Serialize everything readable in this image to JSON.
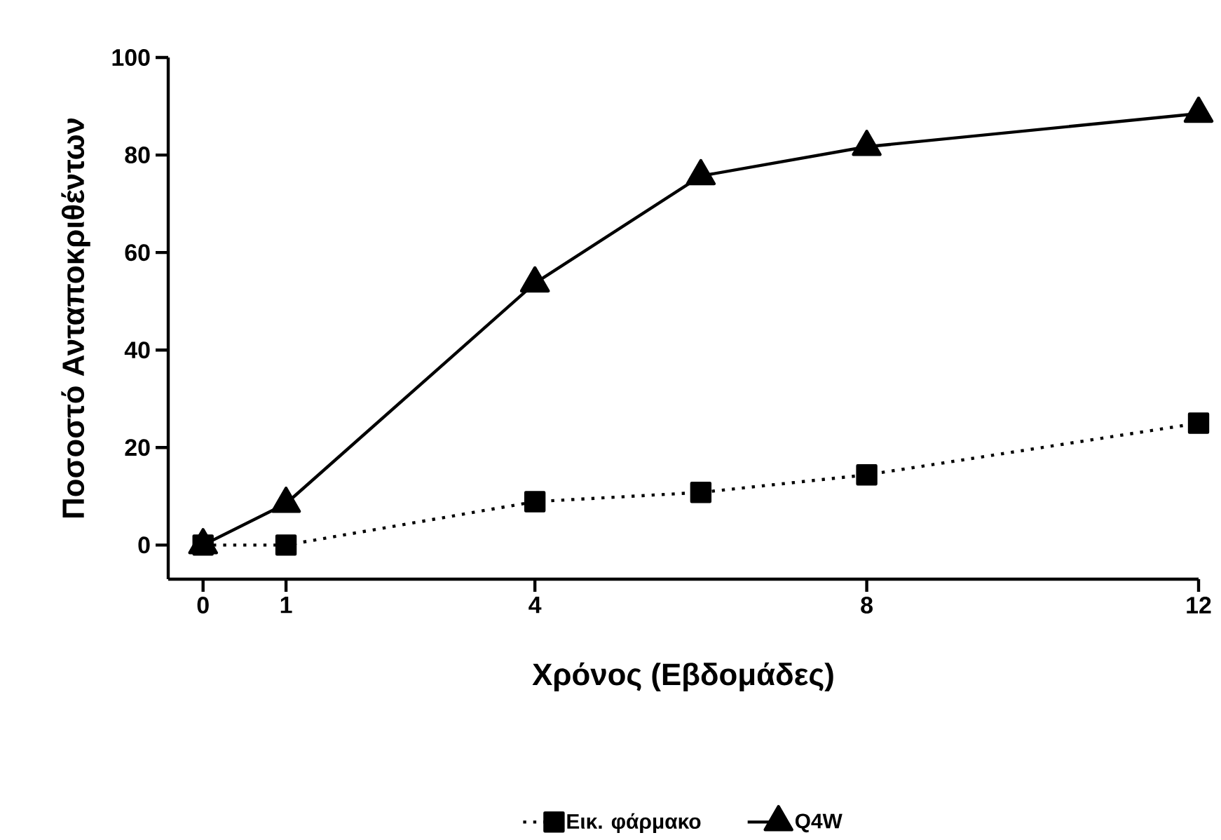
{
  "chart_data": {
    "type": "line",
    "xlabel": "Χρόνος (Εβδομάδες)",
    "ylabel": "Ποσοστό Ανταποκριθέντων",
    "xlim": [
      -0.42,
      12
    ],
    "ylim": [
      -7,
      100
    ],
    "xticks": [
      0,
      1,
      4,
      8,
      12
    ],
    "yticks": [
      0,
      20,
      40,
      60,
      80,
      100
    ],
    "legend": "bottom",
    "series": [
      {
        "name": "Εικ. φάρμακο",
        "color": "#000000",
        "marker": "square",
        "line_style": "dotted",
        "x": [
          0,
          1,
          4,
          6,
          8,
          12
        ],
        "values": [
          0,
          0,
          8.9,
          10.8,
          14.4,
          25.0
        ]
      },
      {
        "name": "Q4W",
        "color": "#000000",
        "marker": "triangle",
        "line_style": "solid",
        "x": [
          0,
          1,
          4,
          6,
          8,
          12
        ],
        "values": [
          0,
          8.5,
          53.7,
          75.7,
          81.7,
          88.5
        ]
      }
    ]
  }
}
